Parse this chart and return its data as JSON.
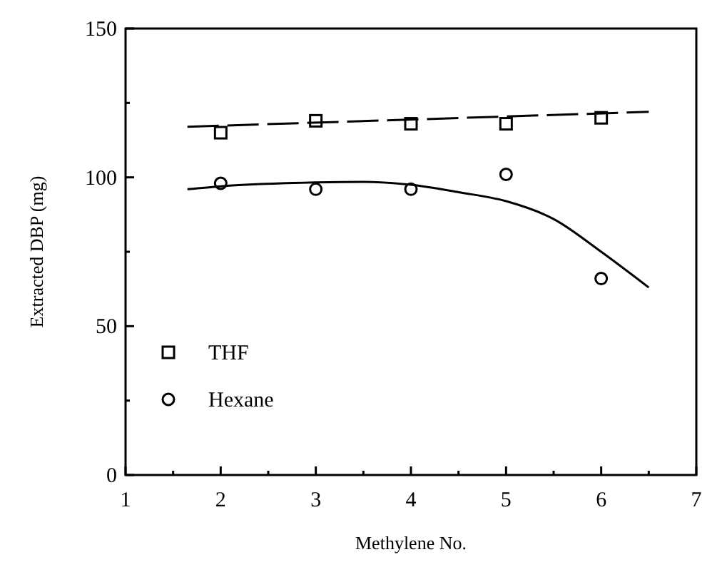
{
  "chart_data": {
    "type": "scatter",
    "xlabel": "Methylene No.",
    "ylabel": "Extracted DBP (mg)",
    "xlim": [
      1,
      7
    ],
    "ylim": [
      0,
      150
    ],
    "xticks": [
      1,
      {
        "value": 1.5,
        "label": null
      },
      2,
      {
        "value": 2.5,
        "label": null
      },
      3,
      {
        "value": 3.5,
        "label": null
      },
      4,
      {
        "value": 4.5,
        "label": null
      },
      5,
      {
        "value": 5.5,
        "label": null
      },
      6,
      {
        "value": 6.5,
        "label": null
      },
      7
    ],
    "yticks": [
      0,
      {
        "value": 25,
        "label": null
      },
      50,
      {
        "value": 75,
        "label": null
      },
      100,
      {
        "value": 125,
        "label": null
      },
      150
    ],
    "grid": false,
    "legend": "bottom left",
    "series": [
      {
        "name": "THF",
        "marker": "square",
        "color": "#000000",
        "x": [
          2,
          3,
          4,
          5,
          6
        ],
        "values": [
          115,
          119,
          118,
          118,
          120
        ]
      },
      {
        "name": "Hexane",
        "marker": "circle",
        "color": "#000000",
        "x": [
          2,
          3,
          4,
          5,
          6
        ],
        "values": [
          98,
          96,
          96,
          101,
          66
        ]
      },
      {
        "type": "line",
        "marker": "none",
        "line_style": "dashed",
        "color": "#000000",
        "x": [
          1.65,
          6.5
        ],
        "values": [
          117,
          122
        ]
      },
      {
        "type": "line",
        "marker": "none",
        "line_style": "solid",
        "color": "#000000",
        "x": [
          1.65,
          2,
          3,
          3.5,
          4,
          4.5,
          5,
          5.5,
          6,
          6.5
        ],
        "values": [
          96,
          97,
          98.3,
          98.5,
          97.5,
          95,
          92,
          86,
          75,
          63
        ]
      }
    ]
  }
}
